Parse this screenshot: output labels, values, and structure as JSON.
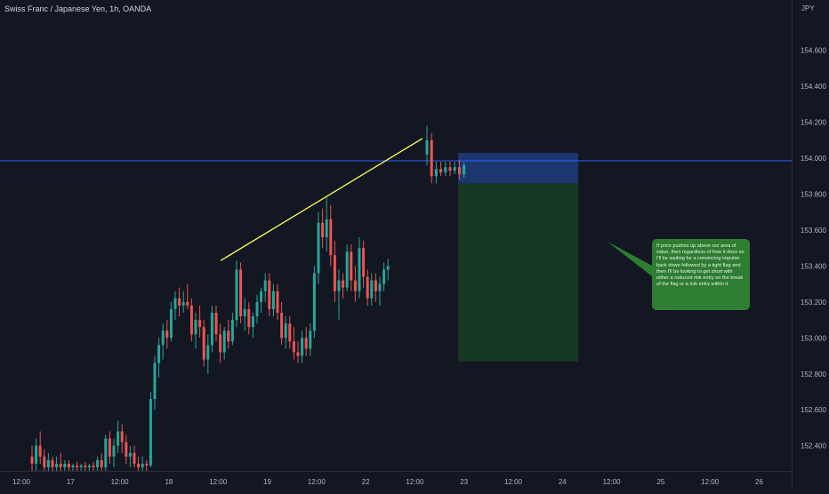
{
  "header": {
    "title": "Swiss Franc / Japanese Yen, 1h, OANDA",
    "currency": "JPY"
  },
  "annotation": {
    "text": "If price pushes up above our area of value, then regardless of how it does so I'll be waiting for a convincing impulse back down followed by a tight flag and then I'll be looking to get short with either a reduced risk entry on the break of the flag or a risk entry within it."
  },
  "colors": {
    "background": "#131722",
    "up": "#26a69a",
    "down": "#ef5350",
    "level_line": "#2962ff",
    "trendline": "#ffff5a",
    "stop_zone": "#1f3a78",
    "target_zone": "#173d24",
    "annotation_bg": "#2e7d32"
  },
  "chart_data": {
    "type": "candlestick",
    "symbol": "Swiss Franc / Japanese Yen, 1h, OANDA",
    "y_unit": "JPY",
    "ylim": [
      152.26,
      154.88
    ],
    "y_ticks": [
      154.6,
      154.4,
      154.2,
      154.0,
      153.8,
      153.6,
      153.4,
      153.2,
      153.0,
      152.8,
      152.6,
      152.4
    ],
    "y_tick_labels": [
      "154.600",
      "154.400",
      "154.200",
      "154.000",
      "153.800",
      "153.600",
      "153.400",
      "153.200",
      "153.000",
      "152.800",
      "152.600",
      "152.400"
    ],
    "x_ticks": [
      "12:00",
      "17",
      "12:00",
      "18",
      "12:00",
      "19",
      "12:00",
      "22",
      "12:00",
      "23",
      "12:00",
      "24",
      "12:00",
      "25",
      "12:00",
      "26"
    ],
    "candles": [
      {
        "o": 152.34,
        "h": 152.4,
        "l": 152.26,
        "c": 152.3
      },
      {
        "o": 152.3,
        "h": 152.44,
        "l": 152.26,
        "c": 152.4
      },
      {
        "o": 152.4,
        "h": 152.48,
        "l": 152.3,
        "c": 152.34
      },
      {
        "o": 152.34,
        "h": 152.38,
        "l": 152.26,
        "c": 152.28
      },
      {
        "o": 152.28,
        "h": 152.36,
        "l": 152.26,
        "c": 152.32
      },
      {
        "o": 152.32,
        "h": 152.34,
        "l": 152.26,
        "c": 152.28
      },
      {
        "o": 152.28,
        "h": 152.34,
        "l": 152.26,
        "c": 152.3
      },
      {
        "o": 152.3,
        "h": 152.36,
        "l": 152.26,
        "c": 152.28
      },
      {
        "o": 152.28,
        "h": 152.32,
        "l": 152.26,
        "c": 152.3
      },
      {
        "o": 152.3,
        "h": 152.32,
        "l": 152.26,
        "c": 152.28
      },
      {
        "o": 152.28,
        "h": 152.3,
        "l": 152.26,
        "c": 152.29
      },
      {
        "o": 152.29,
        "h": 152.31,
        "l": 152.26,
        "c": 152.28
      },
      {
        "o": 152.28,
        "h": 152.3,
        "l": 152.26,
        "c": 152.29
      },
      {
        "o": 152.29,
        "h": 152.31,
        "l": 152.26,
        "c": 152.28
      },
      {
        "o": 152.28,
        "h": 152.3,
        "l": 152.26,
        "c": 152.29
      },
      {
        "o": 152.29,
        "h": 152.31,
        "l": 152.26,
        "c": 152.28
      },
      {
        "o": 152.28,
        "h": 152.34,
        "l": 152.26,
        "c": 152.32
      },
      {
        "o": 152.32,
        "h": 152.36,
        "l": 152.26,
        "c": 152.28
      },
      {
        "o": 152.28,
        "h": 152.46,
        "l": 152.26,
        "c": 152.44
      },
      {
        "o": 152.44,
        "h": 152.48,
        "l": 152.3,
        "c": 152.34
      },
      {
        "o": 152.34,
        "h": 152.44,
        "l": 152.28,
        "c": 152.4
      },
      {
        "o": 152.4,
        "h": 152.54,
        "l": 152.36,
        "c": 152.48
      },
      {
        "o": 152.48,
        "h": 152.52,
        "l": 152.36,
        "c": 152.42
      },
      {
        "o": 152.42,
        "h": 152.46,
        "l": 152.3,
        "c": 152.34
      },
      {
        "o": 152.34,
        "h": 152.4,
        "l": 152.28,
        "c": 152.36
      },
      {
        "o": 152.36,
        "h": 152.4,
        "l": 152.28,
        "c": 152.3
      },
      {
        "o": 152.3,
        "h": 152.34,
        "l": 152.26,
        "c": 152.28
      },
      {
        "o": 152.28,
        "h": 152.34,
        "l": 152.26,
        "c": 152.3
      },
      {
        "o": 152.3,
        "h": 152.32,
        "l": 152.26,
        "c": 152.29
      },
      {
        "o": 152.29,
        "h": 152.7,
        "l": 152.28,
        "c": 152.66
      },
      {
        "o": 152.66,
        "h": 152.9,
        "l": 152.6,
        "c": 152.86
      },
      {
        "o": 152.86,
        "h": 153.0,
        "l": 152.78,
        "c": 152.96
      },
      {
        "o": 152.96,
        "h": 153.08,
        "l": 152.88,
        "c": 153.04
      },
      {
        "o": 153.04,
        "h": 153.1,
        "l": 152.94,
        "c": 153.0
      },
      {
        "o": 153.0,
        "h": 153.2,
        "l": 152.98,
        "c": 153.16
      },
      {
        "o": 153.16,
        "h": 153.26,
        "l": 153.1,
        "c": 153.22
      },
      {
        "o": 153.22,
        "h": 153.28,
        "l": 153.12,
        "c": 153.18
      },
      {
        "o": 153.18,
        "h": 153.26,
        "l": 153.14,
        "c": 153.2
      },
      {
        "o": 153.2,
        "h": 153.3,
        "l": 153.16,
        "c": 153.18
      },
      {
        "o": 153.18,
        "h": 153.22,
        "l": 152.98,
        "c": 153.02
      },
      {
        "o": 153.02,
        "h": 153.14,
        "l": 152.94,
        "c": 153.1
      },
      {
        "o": 153.1,
        "h": 153.18,
        "l": 153.0,
        "c": 153.06
      },
      {
        "o": 153.06,
        "h": 153.1,
        "l": 152.84,
        "c": 152.88
      },
      {
        "o": 152.88,
        "h": 153.02,
        "l": 152.8,
        "c": 152.96
      },
      {
        "o": 152.96,
        "h": 153.18,
        "l": 152.92,
        "c": 153.14
      },
      {
        "o": 153.14,
        "h": 153.18,
        "l": 152.98,
        "c": 153.02
      },
      {
        "o": 153.02,
        "h": 153.08,
        "l": 152.86,
        "c": 152.92
      },
      {
        "o": 152.92,
        "h": 153.06,
        "l": 152.88,
        "c": 153.04
      },
      {
        "o": 153.04,
        "h": 153.1,
        "l": 152.94,
        "c": 152.98
      },
      {
        "o": 152.98,
        "h": 153.14,
        "l": 152.96,
        "c": 153.1
      },
      {
        "o": 153.1,
        "h": 153.43,
        "l": 153.06,
        "c": 153.38
      },
      {
        "o": 153.38,
        "h": 153.42,
        "l": 153.08,
        "c": 153.12
      },
      {
        "o": 153.12,
        "h": 153.22,
        "l": 153.04,
        "c": 153.16
      },
      {
        "o": 153.16,
        "h": 153.2,
        "l": 153.02,
        "c": 153.06
      },
      {
        "o": 153.06,
        "h": 153.14,
        "l": 153.0,
        "c": 153.12
      },
      {
        "o": 153.12,
        "h": 153.24,
        "l": 153.08,
        "c": 153.2
      },
      {
        "o": 153.2,
        "h": 153.28,
        "l": 153.14,
        "c": 153.26
      },
      {
        "o": 153.26,
        "h": 153.36,
        "l": 153.2,
        "c": 153.32
      },
      {
        "o": 153.32,
        "h": 153.36,
        "l": 153.12,
        "c": 153.16
      },
      {
        "o": 153.16,
        "h": 153.3,
        "l": 153.12,
        "c": 153.26
      },
      {
        "o": 153.26,
        "h": 153.3,
        "l": 153.1,
        "c": 153.14
      },
      {
        "o": 153.14,
        "h": 153.2,
        "l": 152.96,
        "c": 153.0
      },
      {
        "o": 153.0,
        "h": 153.12,
        "l": 152.94,
        "c": 153.08
      },
      {
        "o": 153.08,
        "h": 153.12,
        "l": 152.94,
        "c": 152.98
      },
      {
        "o": 152.98,
        "h": 153.06,
        "l": 152.88,
        "c": 152.92
      },
      {
        "o": 152.92,
        "h": 152.98,
        "l": 152.86,
        "c": 152.9
      },
      {
        "o": 152.9,
        "h": 153.04,
        "l": 152.86,
        "c": 153.0
      },
      {
        "o": 153.0,
        "h": 153.06,
        "l": 152.9,
        "c": 152.94
      },
      {
        "o": 152.94,
        "h": 153.08,
        "l": 152.9,
        "c": 153.04
      },
      {
        "o": 153.04,
        "h": 153.4,
        "l": 153.0,
        "c": 153.36
      },
      {
        "o": 153.36,
        "h": 153.7,
        "l": 153.3,
        "c": 153.64
      },
      {
        "o": 153.64,
        "h": 153.72,
        "l": 153.5,
        "c": 153.56
      },
      {
        "o": 153.56,
        "h": 153.78,
        "l": 153.48,
        "c": 153.66
      },
      {
        "o": 153.66,
        "h": 153.74,
        "l": 153.4,
        "c": 153.46
      },
      {
        "o": 153.46,
        "h": 153.54,
        "l": 153.2,
        "c": 153.26
      },
      {
        "o": 153.26,
        "h": 153.38,
        "l": 153.1,
        "c": 153.32
      },
      {
        "o": 153.32,
        "h": 153.36,
        "l": 153.22,
        "c": 153.28
      },
      {
        "o": 153.28,
        "h": 153.52,
        "l": 153.26,
        "c": 153.48
      },
      {
        "o": 153.48,
        "h": 153.52,
        "l": 153.26,
        "c": 153.32
      },
      {
        "o": 153.32,
        "h": 153.4,
        "l": 153.2,
        "c": 153.26
      },
      {
        "o": 153.26,
        "h": 153.56,
        "l": 153.22,
        "c": 153.5
      },
      {
        "o": 153.5,
        "h": 153.54,
        "l": 153.28,
        "c": 153.34
      },
      {
        "o": 153.34,
        "h": 153.38,
        "l": 153.18,
        "c": 153.22
      },
      {
        "o": 153.22,
        "h": 153.36,
        "l": 153.18,
        "c": 153.32
      },
      {
        "o": 153.32,
        "h": 153.36,
        "l": 153.2,
        "c": 153.26
      },
      {
        "o": 153.26,
        "h": 153.34,
        "l": 153.18,
        "c": 153.3
      },
      {
        "o": 153.3,
        "h": 153.42,
        "l": 153.26,
        "c": 153.38
      },
      {
        "o": 153.38,
        "h": 153.44,
        "l": 153.32,
        "c": 153.4
      },
      {
        "o": 154.02,
        "h": 154.18,
        "l": 153.96,
        "c": 154.1
      },
      {
        "o": 154.1,
        "h": 154.14,
        "l": 153.86,
        "c": 153.9
      },
      {
        "o": 153.9,
        "h": 153.98,
        "l": 153.86,
        "c": 153.94
      },
      {
        "o": 153.94,
        "h": 153.98,
        "l": 153.9,
        "c": 153.92
      },
      {
        "o": 153.92,
        "h": 153.98,
        "l": 153.9,
        "c": 153.95
      },
      {
        "o": 153.95,
        "h": 153.98,
        "l": 153.9,
        "c": 153.93
      },
      {
        "o": 153.93,
        "h": 153.98,
        "l": 153.91,
        "c": 153.95
      },
      {
        "o": 153.95,
        "h": 153.99,
        "l": 153.88,
        "c": 153.91
      },
      {
        "o": 153.91,
        "h": 153.98,
        "l": 153.89,
        "c": 153.96
      }
    ],
    "horizontal_level": 153.985,
    "trendline": {
      "from": {
        "x": "17 12:00",
        "y": 153.43
      },
      "to": {
        "x": "22 12:00",
        "y": 154.11
      }
    },
    "short_position": {
      "stop_zone": [
        153.86,
        154.03
      ],
      "target_zone": [
        152.87,
        153.86
      ]
    }
  }
}
